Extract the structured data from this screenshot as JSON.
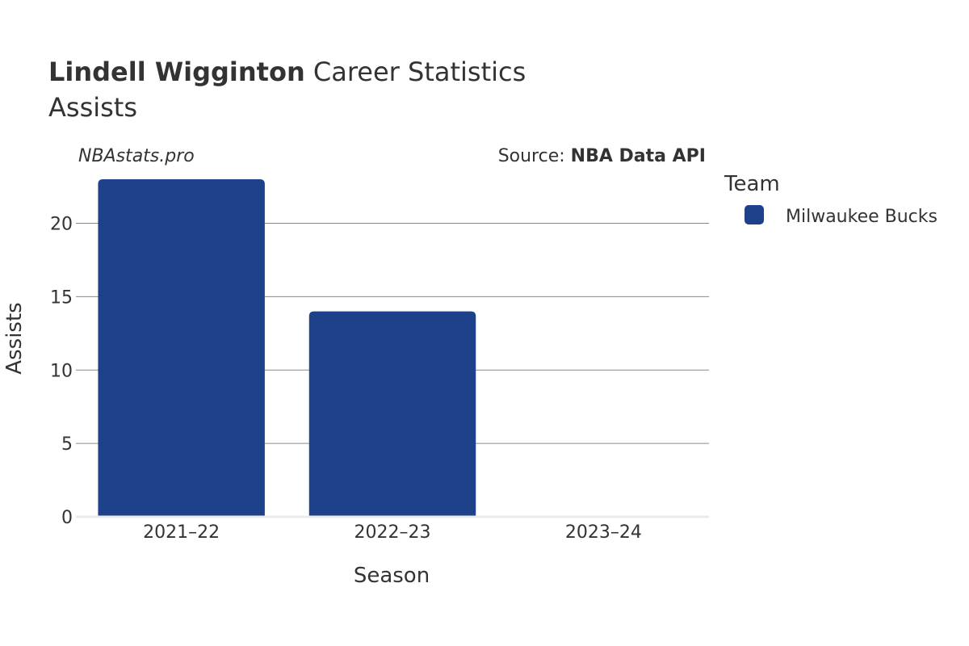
{
  "header": {
    "title_bold": "Lindell Wigginton",
    "title_rest": " Career Statistics",
    "subtitle": "Assists"
  },
  "credit": "NBAstats.pro",
  "source": {
    "prefix": "Source: ",
    "name": "NBA Data API"
  },
  "legend": {
    "title": "Team",
    "items": [
      {
        "label": "Milwaukee Bucks",
        "color": "#1d428a"
      }
    ]
  },
  "chart_data": {
    "type": "bar",
    "categories": [
      "2021–22",
      "2022–23",
      "2023–24"
    ],
    "series": [
      {
        "name": "Milwaukee Bucks",
        "values": [
          23,
          14,
          0
        ],
        "color": "#1d428a"
      }
    ],
    "xlabel": "Season",
    "ylabel": "Assists",
    "ylim": [
      0,
      23
    ],
    "yticks": [
      0,
      5,
      10,
      15,
      20
    ],
    "grid": true,
    "legend_position": "right"
  }
}
